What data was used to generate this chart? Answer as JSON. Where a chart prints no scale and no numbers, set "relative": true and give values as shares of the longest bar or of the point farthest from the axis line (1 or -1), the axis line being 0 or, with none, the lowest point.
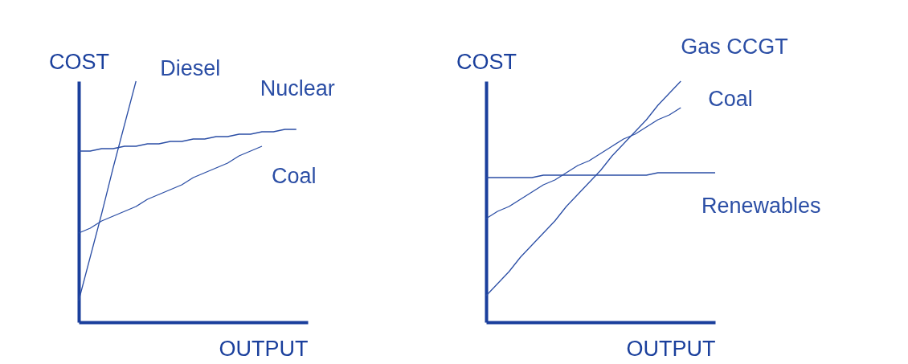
{
  "chart_data": [
    {
      "type": "line",
      "relative": true,
      "xlabel": "OUTPUT",
      "ylabel": "COST",
      "tick_labels": false,
      "categories": [
        null,
        null,
        null,
        null,
        null,
        null,
        null,
        null,
        null,
        null,
        null,
        null,
        null,
        null,
        null,
        null,
        null,
        null,
        null,
        null,
        null
      ],
      "series": [
        {
          "name": "Diesel",
          "color": "#2b4ea5",
          "values": [
            0.09,
            0.27,
            0.45,
            0.64,
            0.82,
            1.0,
            null,
            null,
            null,
            null,
            null,
            null,
            null,
            null,
            null,
            null,
            null,
            null,
            null,
            null,
            null
          ]
        },
        {
          "name": "Nuclear",
          "color": "#2b4ea5",
          "values": [
            0.71,
            0.71,
            0.72,
            0.72,
            0.73,
            0.73,
            0.74,
            0.74,
            0.75,
            0.75,
            0.76,
            0.76,
            0.77,
            0.77,
            0.78,
            0.78,
            0.79,
            0.79,
            0.8,
            0.8,
            null
          ]
        },
        {
          "name": "Coal",
          "color": "#2b4ea5",
          "values": [
            0.37,
            0.39,
            0.42,
            0.44,
            0.46,
            0.48,
            0.51,
            0.53,
            0.55,
            0.57,
            0.6,
            0.62,
            0.64,
            0.66,
            0.69,
            0.71,
            0.73,
            null,
            null,
            null,
            null
          ]
        }
      ]
    },
    {
      "type": "line",
      "relative": true,
      "xlabel": "OUTPUT",
      "ylabel": "COST",
      "tick_labels": false,
      "categories": [
        null,
        null,
        null,
        null,
        null,
        null,
        null,
        null,
        null,
        null,
        null,
        null,
        null,
        null,
        null,
        null,
        null,
        null,
        null,
        null,
        null
      ],
      "series": [
        {
          "name": "Gas CCGT",
          "color": "#2b4ea5",
          "values": [
            0.11,
            0.16,
            0.21,
            0.27,
            0.32,
            0.37,
            0.42,
            0.48,
            0.53,
            0.58,
            0.63,
            0.69,
            0.74,
            0.79,
            0.84,
            0.9,
            0.95,
            1.0,
            null,
            null,
            null
          ]
        },
        {
          "name": "Coal",
          "color": "#2b4ea5",
          "values": [
            0.43,
            0.46,
            0.48,
            0.51,
            0.54,
            0.57,
            0.59,
            0.62,
            0.65,
            0.67,
            0.7,
            0.73,
            0.76,
            0.78,
            0.81,
            0.84,
            0.86,
            0.89,
            null,
            null,
            null
          ]
        },
        {
          "name": "Renewables",
          "color": "#2b4ea5",
          "values": [
            0.6,
            0.6,
            0.6,
            0.6,
            0.6,
            0.61,
            0.61,
            0.61,
            0.61,
            0.61,
            0.61,
            0.61,
            0.61,
            0.61,
            0.61,
            0.62,
            0.62,
            0.62,
            0.62,
            0.62,
            0.62
          ]
        }
      ]
    }
  ]
}
